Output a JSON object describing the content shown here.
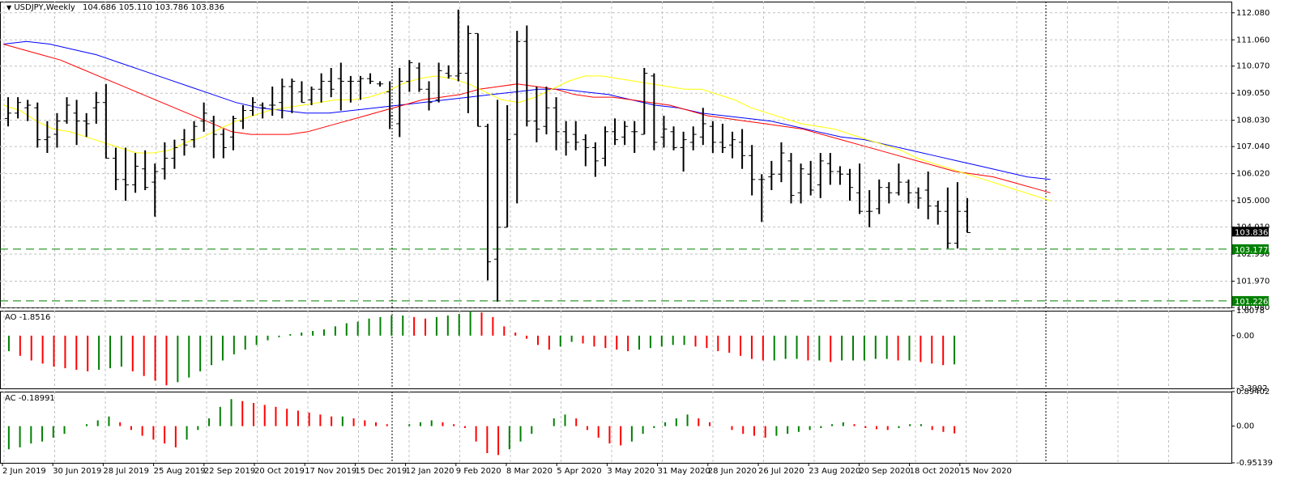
{
  "header": {
    "symbol": "USDJPY,Weekly",
    "ohlc": "104.686 105.110 103.786 103.836"
  },
  "colors": {
    "bull_bar": "#000000",
    "ma_fast": "#ffff00",
    "ma_mid": "#ff0000",
    "ma_slow": "#0000ff",
    "ao_up": "#008000",
    "ao_down": "#ff0000",
    "level_line": "#008000",
    "grid": "#c0c0c0",
    "fractal": "#808080"
  },
  "chart_data": [
    {
      "type": "ohlc",
      "name": "price",
      "ylim": [
        100.98,
        112.5
      ],
      "y_ticks": [
        "112.080",
        "111.060",
        "110.070",
        "109.050",
        "108.030",
        "107.040",
        "106.020",
        "105.000",
        "104.010",
        "102.990",
        "101.970",
        "100.980"
      ],
      "y_tick_values": [
        112.08,
        111.06,
        110.07,
        109.05,
        108.03,
        107.04,
        106.02,
        105.0,
        104.01,
        102.99,
        101.97,
        100.98
      ],
      "x_labels": [
        "2 Jun 2019",
        "30 Jun 2019",
        "28 Jul 2019",
        "25 Aug 2019",
        "22 Sep 2019",
        "20 Oct 2019",
        "17 Nov 2019",
        "15 Dec 2019",
        "12 Jan 2020",
        "9 Feb 2020",
        "8 Mar 2020",
        "5 Apr 2020",
        "3 May 2020",
        "31 May 2020",
        "28 Jun 2020",
        "26 Jul 2020",
        "23 Aug 2020",
        "20 Sep 2020",
        "18 Oct 2020",
        "15 Nov 2020"
      ],
      "bars": [
        {
          "o": 108.1,
          "h": 108.9,
          "l": 107.8,
          "c": 108.3
        },
        {
          "o": 108.3,
          "h": 108.9,
          "l": 108.1,
          "c": 108.7
        },
        {
          "o": 108.5,
          "h": 108.8,
          "l": 108.0,
          "c": 108.6
        },
        {
          "o": 108.5,
          "h": 108.7,
          "l": 107.0,
          "c": 107.3
        },
        {
          "o": 107.3,
          "h": 108.0,
          "l": 106.8,
          "c": 107.4
        },
        {
          "o": 107.5,
          "h": 108.3,
          "l": 107.0,
          "c": 108.0
        },
        {
          "o": 108.0,
          "h": 108.9,
          "l": 107.9,
          "c": 108.6
        },
        {
          "o": 108.3,
          "h": 108.8,
          "l": 107.1,
          "c": 108.0
        },
        {
          "o": 108.0,
          "h": 108.3,
          "l": 107.4,
          "c": 107.9
        },
        {
          "o": 108.5,
          "h": 109.1,
          "l": 107.9,
          "c": 108.7
        },
        {
          "o": 108.7,
          "h": 109.4,
          "l": 106.6,
          "c": 106.6
        },
        {
          "o": 106.6,
          "h": 107.0,
          "l": 105.4,
          "c": 105.8
        },
        {
          "o": 105.8,
          "h": 107.0,
          "l": 105.0,
          "c": 105.6
        },
        {
          "o": 105.6,
          "h": 106.8,
          "l": 105.3,
          "c": 106.3
        },
        {
          "o": 106.2,
          "h": 106.9,
          "l": 105.4,
          "c": 105.5
        },
        {
          "o": 105.7,
          "h": 106.4,
          "l": 104.4,
          "c": 106.1
        },
        {
          "o": 106.2,
          "h": 107.2,
          "l": 105.8,
          "c": 106.6
        },
        {
          "o": 106.6,
          "h": 107.3,
          "l": 106.2,
          "c": 107.0
        },
        {
          "o": 107.3,
          "h": 107.7,
          "l": 106.7,
          "c": 107.1
        },
        {
          "o": 107.3,
          "h": 108.0,
          "l": 107.0,
          "c": 107.8
        },
        {
          "o": 108.0,
          "h": 108.7,
          "l": 107.6,
          "c": 108.3
        },
        {
          "o": 108.0,
          "h": 108.2,
          "l": 106.6,
          "c": 107.5
        },
        {
          "o": 107.5,
          "h": 107.7,
          "l": 106.6,
          "c": 107.0
        },
        {
          "o": 107.4,
          "h": 108.2,
          "l": 106.9,
          "c": 108.1
        },
        {
          "o": 108.0,
          "h": 108.6,
          "l": 107.7,
          "c": 108.4
        },
        {
          "o": 108.4,
          "h": 108.9,
          "l": 108.2,
          "c": 108.7
        },
        {
          "o": 108.6,
          "h": 108.7,
          "l": 108.1,
          "c": 108.5
        },
        {
          "o": 108.6,
          "h": 109.3,
          "l": 108.2,
          "c": 108.6
        },
        {
          "o": 108.7,
          "h": 109.6,
          "l": 108.1,
          "c": 109.3
        },
        {
          "o": 109.3,
          "h": 109.6,
          "l": 108.3,
          "c": 109.5
        },
        {
          "o": 109.1,
          "h": 109.5,
          "l": 108.7,
          "c": 108.7
        },
        {
          "o": 108.8,
          "h": 109.3,
          "l": 108.6,
          "c": 109.2
        },
        {
          "o": 109.2,
          "h": 109.8,
          "l": 108.7,
          "c": 109.5
        },
        {
          "o": 109.5,
          "h": 110.0,
          "l": 108.9,
          "c": 109.2
        },
        {
          "o": 109.6,
          "h": 110.2,
          "l": 108.4,
          "c": 109.5
        },
        {
          "o": 109.5,
          "h": 109.7,
          "l": 108.7,
          "c": 109.5
        },
        {
          "o": 109.5,
          "h": 109.7,
          "l": 108.8,
          "c": 109.6
        },
        {
          "o": 109.6,
          "h": 109.8,
          "l": 109.4,
          "c": 109.5
        },
        {
          "o": 109.4,
          "h": 109.5,
          "l": 109.3,
          "c": 109.4
        },
        {
          "o": 109.1,
          "h": 109.5,
          "l": 107.7,
          "c": 108.2
        },
        {
          "o": 107.9,
          "h": 110.0,
          "l": 107.4,
          "c": 109.5
        },
        {
          "o": 109.5,
          "h": 110.3,
          "l": 109.1,
          "c": 110.2
        },
        {
          "o": 110.0,
          "h": 110.2,
          "l": 109.1,
          "c": 109.2
        },
        {
          "o": 109.2,
          "h": 109.5,
          "l": 108.4,
          "c": 108.7
        },
        {
          "o": 108.8,
          "h": 110.2,
          "l": 108.7,
          "c": 109.9
        },
        {
          "o": 109.8,
          "h": 110.1,
          "l": 109.6,
          "c": 109.7
        },
        {
          "o": 109.7,
          "h": 112.2,
          "l": 109.5,
          "c": 109.8
        },
        {
          "o": 109.8,
          "h": 111.6,
          "l": 108.3,
          "c": 111.3
        },
        {
          "o": 111.3,
          "h": 111.3,
          "l": 107.8,
          "c": 107.8
        },
        {
          "o": 107.8,
          "h": 107.9,
          "l": 102.0,
          "c": 102.7
        },
        {
          "o": 102.8,
          "h": 108.8,
          "l": 101.2,
          "c": 104.0
        },
        {
          "o": 104.0,
          "h": 108.6,
          "l": 104.0,
          "c": 107.3
        },
        {
          "o": 107.5,
          "h": 111.4,
          "l": 104.9,
          "c": 111.0
        },
        {
          "o": 111.0,
          "h": 111.6,
          "l": 107.8,
          "c": 108.0
        },
        {
          "o": 108.0,
          "h": 109.3,
          "l": 107.2,
          "c": 107.7
        },
        {
          "o": 107.8,
          "h": 109.3,
          "l": 107.5,
          "c": 108.5
        },
        {
          "o": 108.5,
          "h": 108.9,
          "l": 106.9,
          "c": 107.6
        },
        {
          "o": 107.6,
          "h": 108.0,
          "l": 106.7,
          "c": 107.2
        },
        {
          "o": 107.5,
          "h": 108.0,
          "l": 106.9,
          "c": 107.2
        },
        {
          "o": 107.3,
          "h": 107.5,
          "l": 106.3,
          "c": 107.0
        },
        {
          "o": 107.0,
          "h": 107.2,
          "l": 105.9,
          "c": 106.5
        },
        {
          "o": 106.6,
          "h": 107.8,
          "l": 106.3,
          "c": 107.6
        },
        {
          "o": 107.6,
          "h": 108.1,
          "l": 107.1,
          "c": 107.3
        },
        {
          "o": 107.4,
          "h": 108.0,
          "l": 107.1,
          "c": 107.8
        },
        {
          "o": 107.6,
          "h": 108.0,
          "l": 106.8,
          "c": 107.6
        },
        {
          "o": 107.5,
          "h": 110.0,
          "l": 107.5,
          "c": 109.8
        },
        {
          "o": 109.7,
          "h": 109.8,
          "l": 106.9,
          "c": 107.2
        },
        {
          "o": 107.4,
          "h": 108.2,
          "l": 107.0,
          "c": 107.7
        },
        {
          "o": 107.6,
          "h": 107.8,
          "l": 106.9,
          "c": 107.0
        },
        {
          "o": 107.0,
          "h": 107.6,
          "l": 106.1,
          "c": 107.3
        },
        {
          "o": 107.2,
          "h": 107.8,
          "l": 106.9,
          "c": 107.5
        },
        {
          "o": 107.4,
          "h": 108.5,
          "l": 107.1,
          "c": 107.9
        },
        {
          "o": 107.8,
          "h": 108.0,
          "l": 106.8,
          "c": 107.2
        },
        {
          "o": 107.2,
          "h": 107.9,
          "l": 106.8,
          "c": 107.0
        },
        {
          "o": 107.1,
          "h": 107.6,
          "l": 106.6,
          "c": 107.3
        },
        {
          "o": 107.2,
          "h": 107.7,
          "l": 106.2,
          "c": 106.7
        },
        {
          "o": 106.7,
          "h": 107.1,
          "l": 105.2,
          "c": 105.8
        },
        {
          "o": 105.8,
          "h": 106.0,
          "l": 104.2,
          "c": 105.8
        },
        {
          "o": 105.9,
          "h": 106.5,
          "l": 105.4,
          "c": 106.0
        },
        {
          "o": 106.0,
          "h": 107.2,
          "l": 105.7,
          "c": 106.8
        },
        {
          "o": 106.5,
          "h": 106.8,
          "l": 104.9,
          "c": 105.2
        },
        {
          "o": 105.3,
          "h": 106.4,
          "l": 104.9,
          "c": 106.2
        },
        {
          "o": 106.0,
          "h": 106.5,
          "l": 105.2,
          "c": 105.4
        },
        {
          "o": 105.6,
          "h": 106.8,
          "l": 105.1,
          "c": 106.5
        },
        {
          "o": 106.4,
          "h": 106.8,
          "l": 105.6,
          "c": 106.1
        },
        {
          "o": 106.1,
          "h": 106.3,
          "l": 105.6,
          "c": 106.0
        },
        {
          "o": 106.0,
          "h": 106.2,
          "l": 105.0,
          "c": 105.5
        },
        {
          "o": 105.3,
          "h": 106.4,
          "l": 104.5,
          "c": 104.6
        },
        {
          "o": 104.6,
          "h": 105.4,
          "l": 104.0,
          "c": 104.6
        },
        {
          "o": 104.7,
          "h": 105.8,
          "l": 104.5,
          "c": 105.5
        },
        {
          "o": 105.5,
          "h": 105.7,
          "l": 104.9,
          "c": 105.3
        },
        {
          "o": 105.3,
          "h": 106.4,
          "l": 105.2,
          "c": 105.7
        },
        {
          "o": 105.7,
          "h": 105.8,
          "l": 104.9,
          "c": 105.3
        },
        {
          "o": 105.3,
          "h": 105.5,
          "l": 104.7,
          "c": 105.1
        },
        {
          "o": 105.4,
          "h": 106.1,
          "l": 104.3,
          "c": 104.8
        },
        {
          "o": 104.8,
          "h": 105.0,
          "l": 104.1,
          "c": 104.6
        },
        {
          "o": 104.6,
          "h": 105.5,
          "l": 103.2,
          "c": 103.4
        },
        {
          "o": 103.4,
          "h": 105.7,
          "l": 103.2,
          "c": 104.6
        },
        {
          "o": 104.6,
          "h": 105.1,
          "l": 103.8,
          "c": 103.8
        }
      ],
      "ma_fast": [
        108.6,
        108.4,
        108.0,
        107.7,
        107.6,
        107.4,
        107.2,
        107.0,
        106.8,
        106.8,
        106.9,
        107.2,
        107.4,
        107.7,
        108.0,
        108.2,
        108.4,
        108.5,
        108.6,
        108.7,
        108.8,
        108.8,
        108.9,
        109.1,
        109.4,
        109.6,
        109.7,
        109.6,
        109.4,
        109.1,
        108.8,
        108.7,
        108.9,
        109.2,
        109.5,
        109.7,
        109.7,
        109.6,
        109.5,
        109.4,
        109.3,
        109.2,
        109.2,
        109.0,
        108.8,
        108.5,
        108.3,
        108.1,
        107.9,
        107.8,
        107.7,
        107.5,
        107.3,
        107.1,
        106.9,
        106.6,
        106.4,
        106.2,
        106.0,
        105.8,
        105.6,
        105.4,
        105.2,
        105.0
      ],
      "ma_fast_start": 0,
      "ma_mid": [
        110.9,
        110.7,
        110.5,
        110.3,
        110.0,
        109.7,
        109.4,
        109.1,
        108.8,
        108.5,
        108.2,
        107.9,
        107.6,
        107.5,
        107.5,
        107.5,
        107.6,
        107.8,
        108.0,
        108.2,
        108.4,
        108.6,
        108.8,
        108.9,
        109.0,
        109.2,
        109.3,
        109.4,
        109.3,
        109.2,
        109.0,
        108.9,
        108.9,
        108.8,
        108.7,
        108.6,
        108.4,
        108.2,
        108.1,
        108.0,
        107.9,
        107.8,
        107.7,
        107.5,
        107.3,
        107.1,
        106.9,
        106.7,
        106.5,
        106.3,
        106.1,
        106.0,
        105.9,
        105.7,
        105.5,
        105.3
      ],
      "ma_mid_start": 0,
      "ma_slow": [
        110.9,
        111.0,
        110.9,
        110.7,
        110.5,
        110.2,
        109.9,
        109.6,
        109.3,
        109.0,
        108.7,
        108.5,
        108.4,
        108.3,
        108.3,
        108.4,
        108.5,
        108.6,
        108.7,
        108.8,
        108.9,
        109.0,
        109.1,
        109.2,
        109.2,
        109.1,
        109.0,
        108.8,
        108.6,
        108.5,
        108.3,
        108.2,
        108.1,
        108.0,
        107.8,
        107.6,
        107.4,
        107.3,
        107.1,
        106.9,
        106.7,
        106.5,
        106.3,
        106.1,
        105.9,
        105.8
      ],
      "ma_slow_start": 0,
      "levels": [
        {
          "value": 103.177,
          "label": "103.177"
        },
        {
          "value": 101.226,
          "label": "101.226"
        }
      ],
      "current_price": {
        "value": 103.836,
        "label": "103.836"
      }
    },
    {
      "type": "histogram",
      "name": "AO",
      "title": "AO -1.8516",
      "ylim": [
        -3.3992,
        1.6078
      ],
      "y_ticks": [
        "1.6078",
        "0.00",
        "-3.3992"
      ],
      "y_tick_values": [
        1.6078,
        0.0,
        -3.3992
      ],
      "values": [
        -1.0,
        -1.3,
        -1.6,
        -1.8,
        -2.0,
        -2.1,
        -2.2,
        -2.3,
        -2.2,
        -2.1,
        -2.0,
        -2.3,
        -2.6,
        -2.9,
        -3.2,
        -3.0,
        -2.7,
        -2.3,
        -1.9,
        -1.6,
        -1.2,
        -0.9,
        -0.6,
        -0.3,
        -0.1,
        0.1,
        0.2,
        0.3,
        0.4,
        0.6,
        0.8,
        0.9,
        1.1,
        1.2,
        1.3,
        1.3,
        1.2,
        1.1,
        1.2,
        1.3,
        1.4,
        1.6,
        1.5,
        1.2,
        0.6,
        0.2,
        -0.2,
        -0.6,
        -0.9,
        -0.7,
        -0.4,
        -0.5,
        -0.7,
        -0.8,
        -0.9,
        -1.0,
        -0.9,
        -0.8,
        -0.7,
        -0.6,
        -0.6,
        -0.7,
        -0.8,
        -1.0,
        -1.1,
        -1.3,
        -1.5,
        -1.6,
        -1.6,
        -1.5,
        -1.5,
        -1.6,
        -1.6,
        -1.7,
        -1.6,
        -1.6,
        -1.6,
        -1.5,
        -1.5,
        -1.6,
        -1.6,
        -1.7,
        -1.8,
        -1.9,
        -1.85
      ]
    },
    {
      "type": "histogram",
      "name": "AC",
      "title": "AC -0.18991",
      "ylim": [
        -0.95139,
        0.89402
      ],
      "y_ticks": [
        "0.89402",
        "0.00",
        "-0.95139"
      ],
      "y_tick_values": [
        0.89402,
        0.0,
        -0.95139
      ],
      "values": [
        -0.6,
        -0.55,
        -0.45,
        -0.4,
        -0.3,
        -0.2,
        0.0,
        0.05,
        0.15,
        0.25,
        0.1,
        -0.1,
        -0.25,
        -0.35,
        -0.45,
        -0.55,
        -0.35,
        -0.1,
        0.2,
        0.5,
        0.7,
        0.65,
        0.6,
        0.55,
        0.5,
        0.45,
        0.4,
        0.35,
        0.3,
        0.25,
        0.25,
        0.2,
        0.15,
        0.1,
        0.05,
        0.0,
        0.05,
        0.1,
        0.15,
        0.1,
        0.05,
        -0.05,
        -0.4,
        -0.7,
        -0.75,
        -0.6,
        -0.4,
        -0.2,
        0.0,
        0.2,
        0.3,
        0.2,
        -0.1,
        -0.3,
        -0.45,
        -0.5,
        -0.4,
        -0.2,
        -0.05,
        0.1,
        0.2,
        0.3,
        0.2,
        0.1,
        0.0,
        -0.1,
        -0.2,
        -0.25,
        -0.3,
        -0.25,
        -0.2,
        -0.15,
        -0.1,
        -0.05,
        0.05,
        0.1,
        0.05,
        -0.05,
        -0.08,
        -0.1,
        -0.05,
        0.05,
        0.05,
        -0.1,
        -0.15,
        -0.19
      ]
    }
  ]
}
